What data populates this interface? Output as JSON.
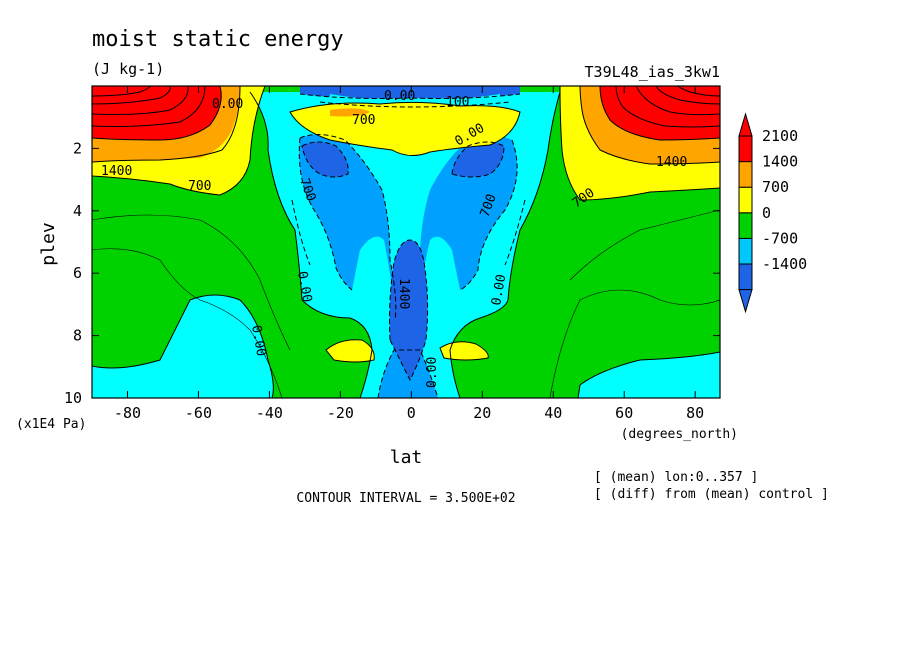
{
  "chart_data": {
    "type": "heatmap",
    "title": "moist static energy",
    "units": "(J kg-1)",
    "experiment": "T39L48_ias_3kw1",
    "xlabel": "lat",
    "xunits": "(degrees_north)",
    "ylabel": "plev",
    "yunits": "(x1E4 Pa)",
    "xlim": [
      -90,
      87
    ],
    "ylim": [
      10,
      0
    ],
    "x_ticks": [
      "-80",
      "-60",
      "-40",
      "-20",
      "0",
      "20",
      "40",
      "60",
      "80"
    ],
    "y_ticks": [
      "2",
      "4",
      "6",
      "8",
      "10"
    ],
    "contour_interval_text": "CONTOUR INTERVAL = 3.500E+02",
    "notes": [
      "[ (mean) lon:0..357 ]",
      "[ (diff) from (mean) control ]"
    ],
    "colorbar": {
      "levels": [
        -1400,
        -700,
        0,
        700,
        1400,
        2100
      ],
      "labels": [
        "2100",
        "1400",
        "700",
        "0",
        "-700",
        "-1400"
      ],
      "colors": [
        "#1e64e6",
        "#00c8ff",
        "#00d200",
        "#ffff00",
        "#ffa500",
        "#ff0000"
      ]
    },
    "contour_labels": [
      "0.00",
      "700",
      "100",
      "0.00",
      "1400",
      "700",
      "1400",
      "700",
      "700",
      "700",
      "0.00",
      "0.00",
      "0.00",
      "1400",
      "0.00",
      "0.00"
    ],
    "field_colors": {
      "green": "#00d200",
      "cyan": "#00ffff",
      "lightblue": "#00a0ff",
      "blue": "#1e64e6",
      "yellow": "#ffff00",
      "orange": "#ffa500",
      "red": "#ff0000"
    }
  }
}
